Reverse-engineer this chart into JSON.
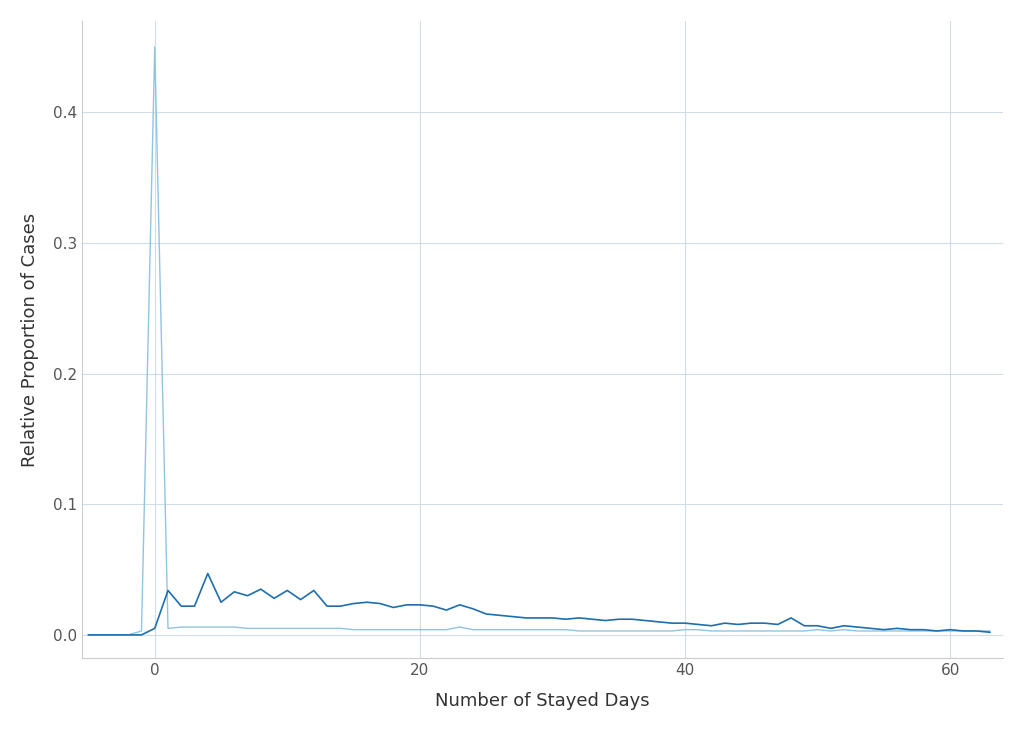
{
  "title": "",
  "xlabel": "Number of Stayed Days",
  "ylabel": "Relative Proportion of Cases",
  "background_color": "#ffffff",
  "grid_color": "#d0dce8",
  "xlim": [
    -5.5,
    64
  ],
  "ylim": [
    -0.018,
    0.47
  ],
  "xticks": [
    0,
    20,
    40,
    60
  ],
  "yticks": [
    0.0,
    0.1,
    0.2,
    0.3,
    0.4
  ],
  "line1_color": "#91C4E0",
  "line2_color": "#1f6fad",
  "line1_x": [
    -5,
    -4,
    -3,
    -2,
    -1,
    0,
    1,
    2,
    3,
    4,
    5,
    6,
    7,
    8,
    9,
    10,
    11,
    12,
    13,
    14,
    15,
    16,
    17,
    18,
    19,
    20,
    21,
    22,
    23,
    24,
    25,
    26,
    27,
    28,
    29,
    30,
    31,
    32,
    33,
    34,
    35,
    36,
    37,
    38,
    39,
    40,
    41,
    42,
    43,
    44,
    45,
    46,
    47,
    48,
    49,
    50,
    51,
    52,
    53,
    54,
    55,
    56,
    57,
    58,
    59,
    60,
    61,
    62,
    63
  ],
  "line1_y": [
    0.0,
    0.0,
    0.0,
    0.0,
    0.003,
    0.45,
    0.005,
    0.006,
    0.006,
    0.006,
    0.006,
    0.006,
    0.005,
    0.005,
    0.005,
    0.005,
    0.005,
    0.005,
    0.005,
    0.005,
    0.004,
    0.004,
    0.004,
    0.004,
    0.004,
    0.004,
    0.004,
    0.004,
    0.006,
    0.004,
    0.004,
    0.004,
    0.004,
    0.004,
    0.004,
    0.004,
    0.004,
    0.003,
    0.003,
    0.003,
    0.003,
    0.003,
    0.003,
    0.003,
    0.003,
    0.004,
    0.004,
    0.003,
    0.003,
    0.003,
    0.003,
    0.003,
    0.003,
    0.003,
    0.003,
    0.004,
    0.003,
    0.004,
    0.003,
    0.003,
    0.003,
    0.003,
    0.003,
    0.003,
    0.003,
    0.003,
    0.003,
    0.003,
    0.003
  ],
  "line2_x": [
    -5,
    -4,
    -3,
    -2,
    -1,
    0,
    1,
    2,
    3,
    4,
    5,
    6,
    7,
    8,
    9,
    10,
    11,
    12,
    13,
    14,
    15,
    16,
    17,
    18,
    19,
    20,
    21,
    22,
    23,
    24,
    25,
    26,
    27,
    28,
    29,
    30,
    31,
    32,
    33,
    34,
    35,
    36,
    37,
    38,
    39,
    40,
    41,
    42,
    43,
    44,
    45,
    46,
    47,
    48,
    49,
    50,
    51,
    52,
    53,
    54,
    55,
    56,
    57,
    58,
    59,
    60,
    61,
    62,
    63
  ],
  "line2_y": [
    0.0,
    0.0,
    0.0,
    0.0,
    0.0,
    0.005,
    0.034,
    0.022,
    0.022,
    0.047,
    0.025,
    0.033,
    0.03,
    0.035,
    0.028,
    0.034,
    0.027,
    0.034,
    0.022,
    0.022,
    0.024,
    0.025,
    0.024,
    0.021,
    0.023,
    0.023,
    0.022,
    0.019,
    0.023,
    0.02,
    0.016,
    0.015,
    0.014,
    0.013,
    0.013,
    0.013,
    0.012,
    0.013,
    0.012,
    0.011,
    0.012,
    0.012,
    0.011,
    0.01,
    0.009,
    0.009,
    0.008,
    0.007,
    0.009,
    0.008,
    0.009,
    0.009,
    0.008,
    0.013,
    0.007,
    0.007,
    0.005,
    0.007,
    0.006,
    0.005,
    0.004,
    0.005,
    0.004,
    0.004,
    0.003,
    0.004,
    0.003,
    0.003,
    0.002
  ]
}
